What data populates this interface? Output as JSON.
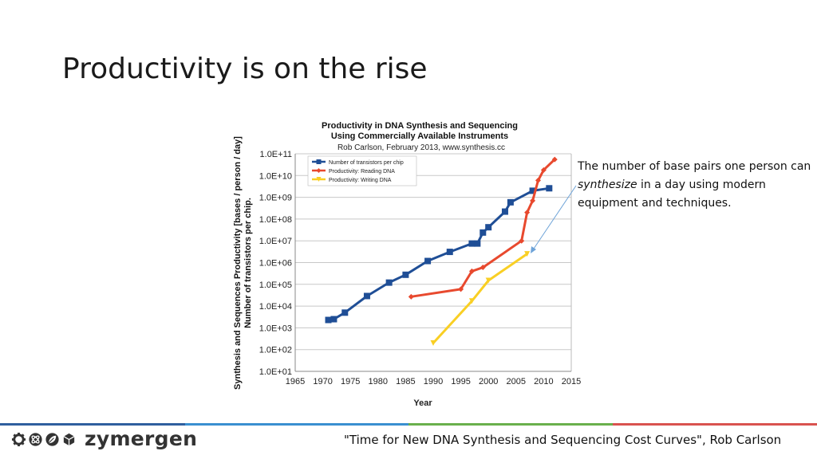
{
  "slide": {
    "title": "Productivity is on the rise",
    "callout": {
      "before": "The number of base pairs one person can ",
      "emphasis": "synthesize",
      "after": " in a day using modern equipment and techniques."
    },
    "citation": "\"Time for New DNA Synthesis and Sequencing Cost Curves\", Rob Carlson",
    "logo": {
      "text": "zymergen",
      "icons": [
        "gear-icon",
        "atom-icon",
        "leaf-icon",
        "cube-icon"
      ]
    },
    "footer_colors": [
      "#2f5f9e",
      "#3a8fd0",
      "#6ab04c",
      "#d9534f"
    ]
  },
  "chart_data": {
    "type": "line",
    "title": [
      "Productivity in DNA Synthesis and Sequencing",
      "Using Commercially Available Instruments"
    ],
    "subtitle": "Rob Carlson, February 2013, www.synthesis.cc",
    "xlabel": "Year",
    "ylabel": [
      "Synthesis and Sequences Productivity [bases / person / day]",
      "Number of transistors per chip."
    ],
    "xlim": [
      1965,
      2015
    ],
    "xticks": [
      1965,
      1970,
      1975,
      1980,
      1985,
      1990,
      1995,
      2000,
      2005,
      2010,
      2015
    ],
    "ylim_log10": [
      1,
      11
    ],
    "y_scale": "log",
    "yticks": [
      "1.0E+01",
      "1.0E+02",
      "1.0E+03",
      "1.0E+04",
      "1.0E+05",
      "1.0E+06",
      "1.0E+07",
      "1.0E+08",
      "1.0E+09",
      "1.0E+10",
      "1.0E+11"
    ],
    "grid": "horizontal",
    "legend_position": "top-left",
    "series": [
      {
        "name": "Number of transistors per chip",
        "color": "#1f4e96",
        "marker": "square",
        "x": [
          1971,
          1972,
          1974,
          1978,
          1982,
          1985,
          1989,
          1993,
          1997,
          1998,
          1999,
          2000,
          2003,
          2004,
          2008,
          2011
        ],
        "y": [
          2300,
          2500,
          5000,
          29000,
          120000,
          275000,
          1180000,
          3100000,
          7500000,
          7500000,
          24000000,
          42000000,
          220000000,
          590000000,
          2000000000,
          2600000000
        ]
      },
      {
        "name": "Productivity: Reading DNA",
        "color": "#e8492e",
        "marker": "diamond",
        "x": [
          1986,
          1995,
          1997,
          1999,
          2006,
          2007,
          2008,
          2009,
          2010,
          2012
        ],
        "y": [
          27000,
          60000,
          400000,
          600000,
          10000000,
          200000000,
          700000000,
          6000000000,
          18000000000,
          55000000000
        ]
      },
      {
        "name": "Productivity: Writing DNA",
        "color": "#f9cf24",
        "marker": "triangle",
        "x": [
          1990,
          1997,
          2000,
          2007
        ],
        "y": [
          200,
          17000,
          150000,
          2500000
        ]
      }
    ]
  }
}
